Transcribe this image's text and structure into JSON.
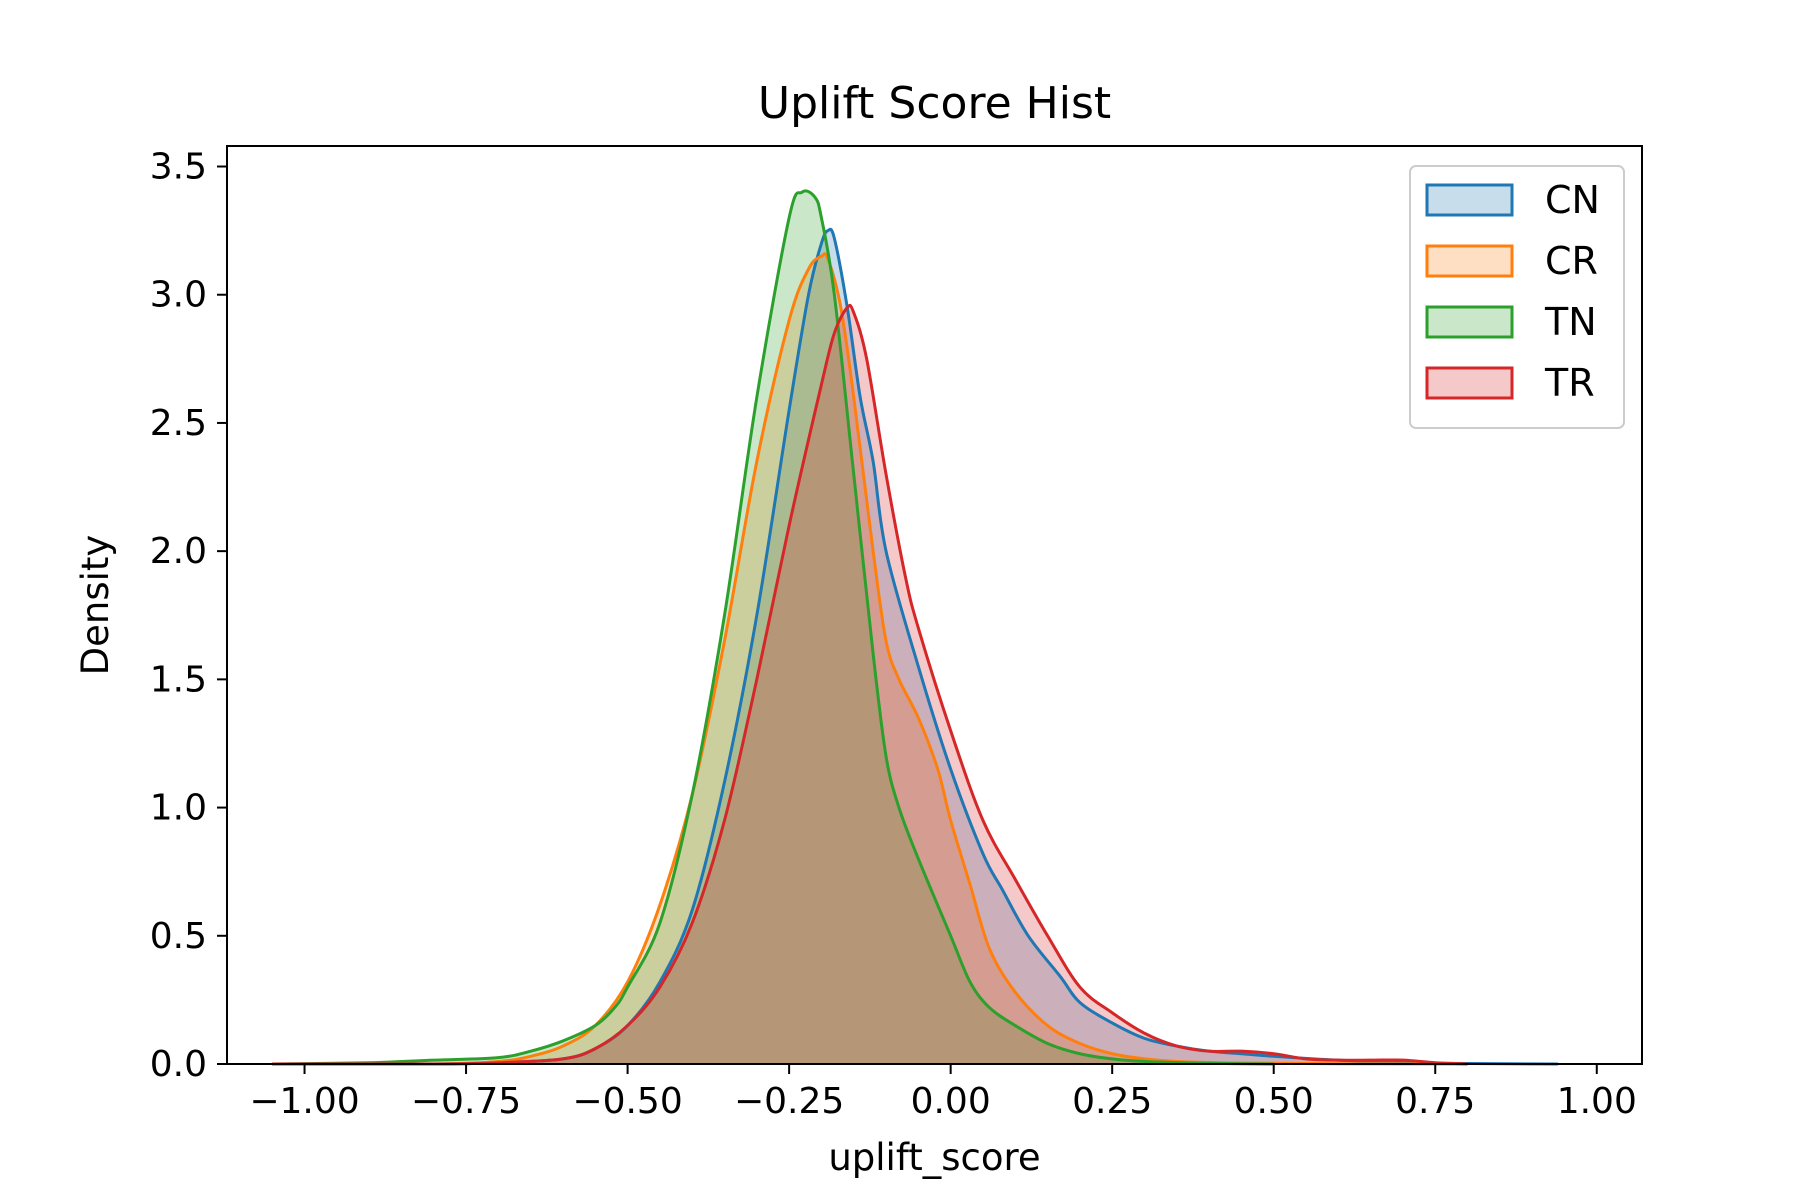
{
  "chart_data": {
    "type": "area",
    "title": "Uplift Score Hist",
    "xlabel": "uplift_score",
    "ylabel": "Density",
    "xlim": [
      -1.12,
      1.07
    ],
    "ylim": [
      0,
      3.58
    ],
    "xticks": [
      -1.0,
      -0.75,
      -0.5,
      -0.25,
      0.0,
      0.25,
      0.5,
      0.75,
      1.0
    ],
    "xtick_labels": [
      "−1.00",
      "−0.75",
      "−0.50",
      "−0.25",
      "0.00",
      "0.25",
      "0.50",
      "0.75",
      "1.00"
    ],
    "yticks": [
      0.0,
      0.5,
      1.0,
      1.5,
      2.0,
      2.5,
      3.0,
      3.5
    ],
    "ytick_labels": [
      "0.0",
      "0.5",
      "1.0",
      "1.5",
      "2.0",
      "2.5",
      "3.0",
      "3.5"
    ],
    "grid": false,
    "legend_position": "top-right",
    "fill_opacity": 0.25,
    "series": [
      {
        "name": "CN",
        "color": "#1f77b4",
        "x": [
          -1.05,
          -0.8,
          -0.7,
          -0.6,
          -0.55,
          -0.5,
          -0.45,
          -0.4,
          -0.35,
          -0.3,
          -0.25,
          -0.22,
          -0.2,
          -0.19,
          -0.18,
          -0.16,
          -0.14,
          -0.12,
          -0.1,
          -0.05,
          0.0,
          0.05,
          0.08,
          0.12,
          0.17,
          0.2,
          0.25,
          0.3,
          0.35,
          0.4,
          0.45,
          0.5,
          0.6,
          0.7,
          0.8,
          0.94
        ],
        "y": [
          0.0,
          0.0,
          0.005,
          0.02,
          0.06,
          0.15,
          0.32,
          0.6,
          1.1,
          1.75,
          2.55,
          3.0,
          3.2,
          3.25,
          3.22,
          2.95,
          2.6,
          2.35,
          2.0,
          1.55,
          1.15,
          0.82,
          0.68,
          0.5,
          0.34,
          0.24,
          0.16,
          0.1,
          0.07,
          0.05,
          0.04,
          0.03,
          0.015,
          0.005,
          0.002,
          0.0
        ]
      },
      {
        "name": "CR",
        "color": "#ff7f0e",
        "x": [
          -1.05,
          -0.8,
          -0.7,
          -0.65,
          -0.6,
          -0.55,
          -0.5,
          -0.45,
          -0.4,
          -0.35,
          -0.3,
          -0.25,
          -0.22,
          -0.2,
          -0.19,
          -0.17,
          -0.15,
          -0.12,
          -0.1,
          -0.08,
          -0.05,
          -0.02,
          0.0,
          0.03,
          0.06,
          0.1,
          0.15,
          0.2,
          0.25,
          0.3,
          0.35,
          0.45,
          0.6,
          0.8
        ],
        "y": [
          0.0,
          0.0,
          0.01,
          0.03,
          0.07,
          0.15,
          0.32,
          0.62,
          1.05,
          1.65,
          2.35,
          2.9,
          3.1,
          3.15,
          3.14,
          2.95,
          2.6,
          2.0,
          1.65,
          1.5,
          1.35,
          1.15,
          0.95,
          0.7,
          0.45,
          0.28,
          0.15,
          0.08,
          0.04,
          0.02,
          0.01,
          0.004,
          0.001,
          0.0
        ]
      },
      {
        "name": "TN",
        "color": "#2ca02c",
        "x": [
          -1.05,
          -0.9,
          -0.8,
          -0.7,
          -0.65,
          -0.6,
          -0.55,
          -0.52,
          -0.5,
          -0.45,
          -0.4,
          -0.35,
          -0.3,
          -0.25,
          -0.23,
          -0.21,
          -0.2,
          -0.18,
          -0.15,
          -0.12,
          -0.1,
          -0.08,
          -0.05,
          0.0,
          0.03,
          0.06,
          0.1,
          0.15,
          0.2,
          0.25,
          0.3,
          0.4,
          0.5
        ],
        "y": [
          0.0,
          0.005,
          0.015,
          0.025,
          0.05,
          0.09,
          0.15,
          0.22,
          0.3,
          0.55,
          1.05,
          1.75,
          2.6,
          3.3,
          3.4,
          3.38,
          3.3,
          3.0,
          2.3,
          1.6,
          1.2,
          1.0,
          0.8,
          0.5,
          0.32,
          0.22,
          0.15,
          0.08,
          0.04,
          0.02,
          0.01,
          0.003,
          0.0
        ]
      },
      {
        "name": "TR",
        "color": "#d62728",
        "x": [
          -1.05,
          -0.8,
          -0.7,
          -0.6,
          -0.55,
          -0.5,
          -0.45,
          -0.4,
          -0.35,
          -0.3,
          -0.25,
          -0.2,
          -0.18,
          -0.16,
          -0.15,
          -0.13,
          -0.1,
          -0.07,
          -0.05,
          0.0,
          0.05,
          0.1,
          0.15,
          0.2,
          0.25,
          0.3,
          0.35,
          0.4,
          0.45,
          0.5,
          0.55,
          0.6,
          0.65,
          0.7,
          0.75,
          0.8
        ],
        "y": [
          0.0,
          0.0,
          0.005,
          0.02,
          0.06,
          0.15,
          0.3,
          0.55,
          0.95,
          1.5,
          2.1,
          2.65,
          2.85,
          2.95,
          2.93,
          2.75,
          2.3,
          1.9,
          1.7,
          1.3,
          0.95,
          0.72,
          0.5,
          0.3,
          0.2,
          0.12,
          0.07,
          0.05,
          0.05,
          0.04,
          0.02,
          0.015,
          0.015,
          0.015,
          0.005,
          0.0
        ]
      }
    ]
  }
}
